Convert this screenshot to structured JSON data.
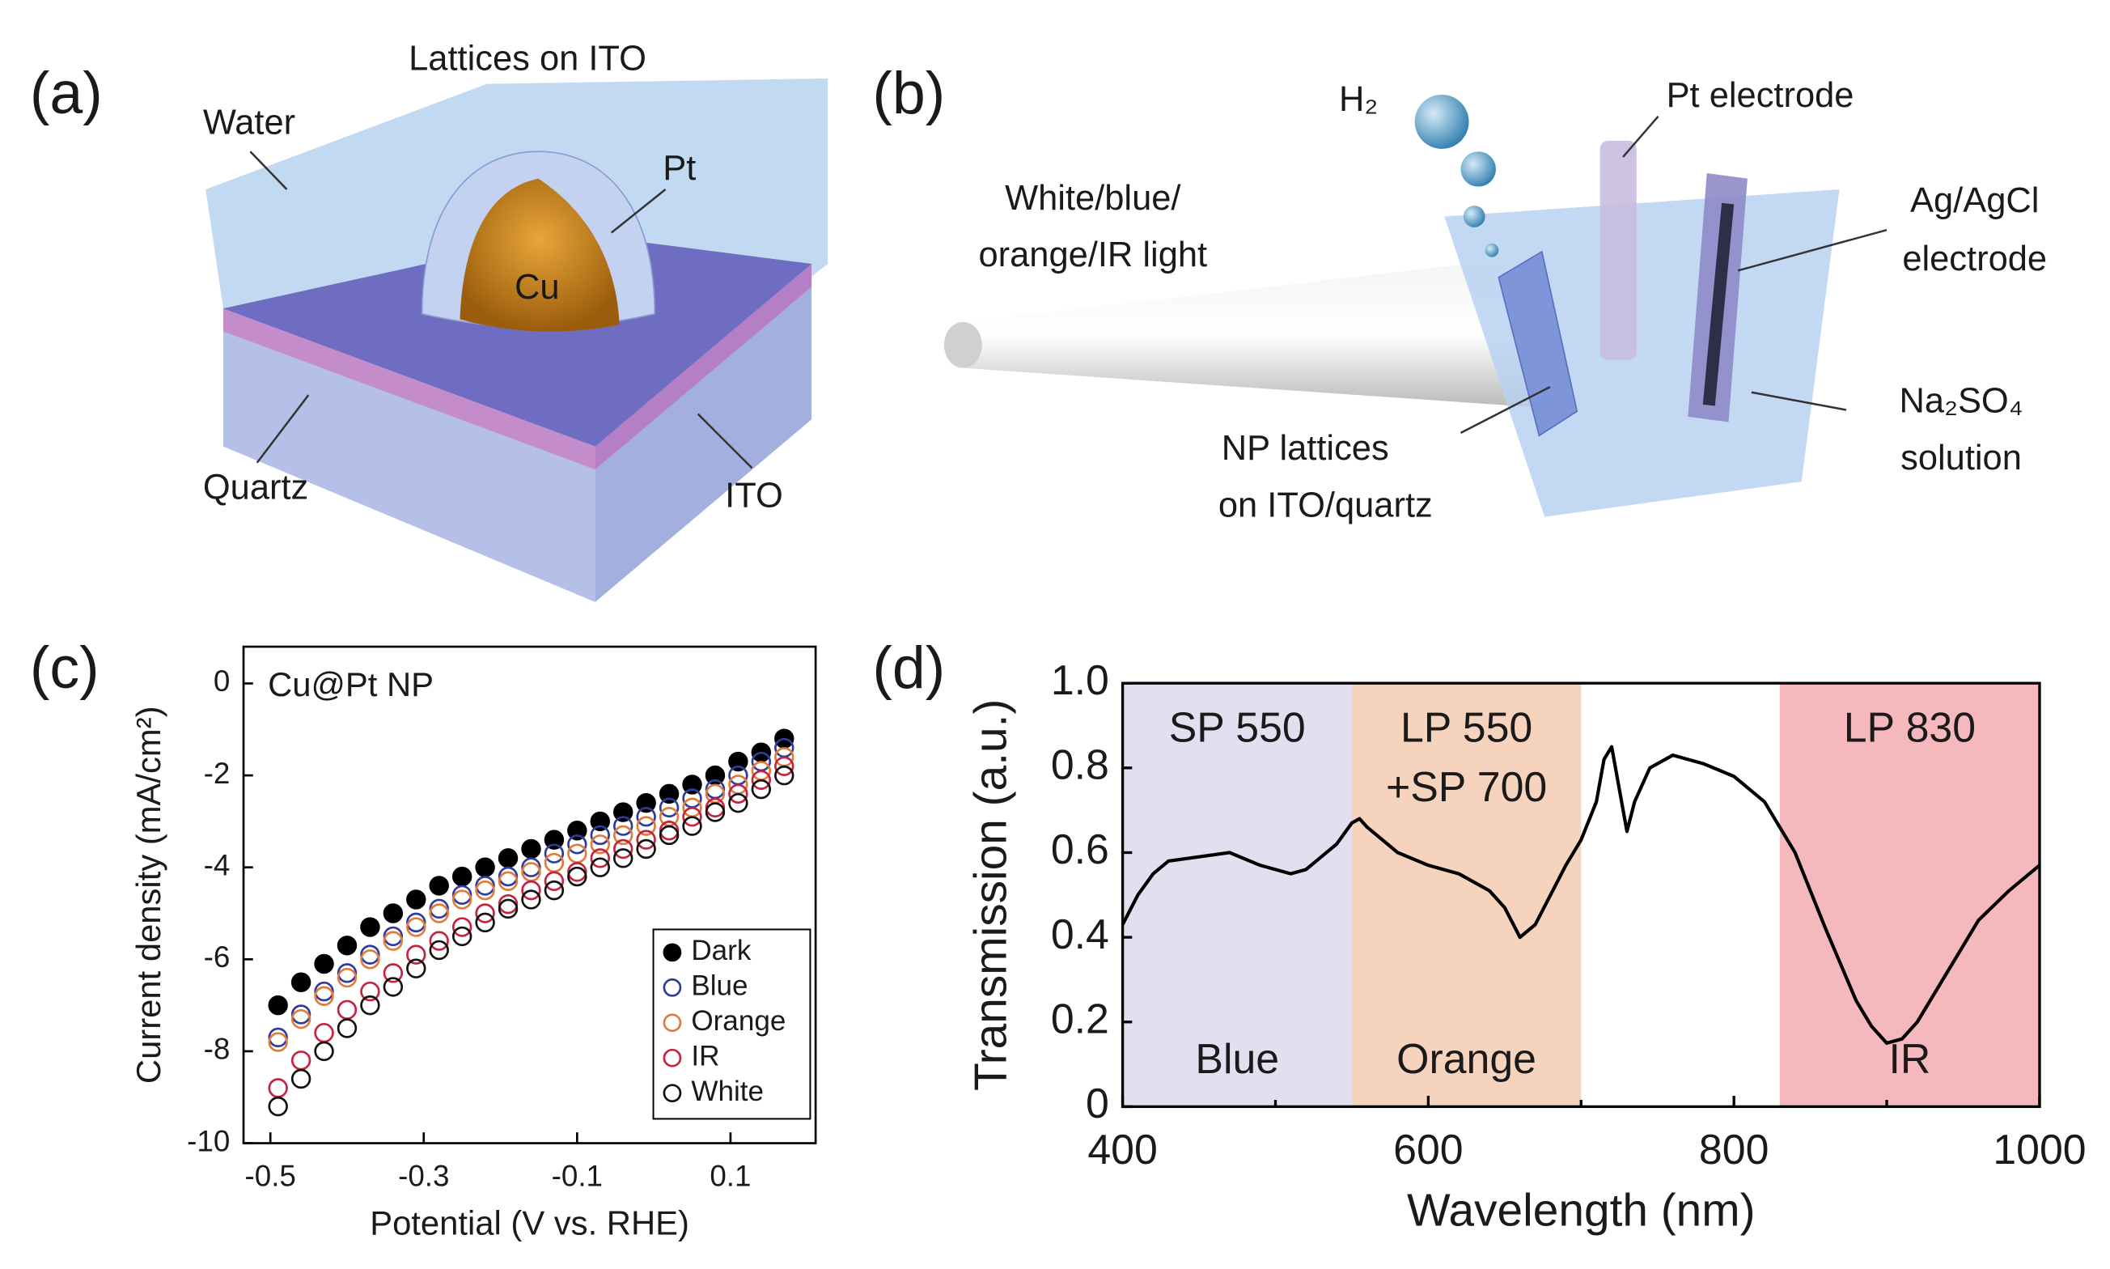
{
  "panels": [
    {
      "label": "(a)",
      "title": "Lattices on ITO",
      "labels": [
        "Water",
        "Pt",
        "Cu",
        "Quartz",
        "ITO"
      ]
    },
    {
      "label": "(b)",
      "labels": [
        "H₂",
        "Pt electrode",
        "White/blue/",
        "orange/IR light",
        "Ag/AgCl",
        "electrode",
        "NP lattices",
        "on ITO/quartz",
        "Na₂SO₄",
        "solution"
      ]
    }
  ],
  "chart_data": [
    {
      "type": "scatter",
      "panel": "(c)",
      "annotation": "Cu@Pt NP",
      "x_label": "Potential (V vs. RHE)",
      "y_label": "Current density (mA/cm²)",
      "x": [
        -0.49,
        -0.46,
        -0.43,
        -0.4,
        -0.37,
        -0.34,
        -0.31,
        -0.28,
        -0.25,
        -0.22,
        -0.19,
        -0.16,
        -0.13,
        -0.1,
        -0.07,
        -0.04,
        -0.01,
        0.02,
        0.05,
        0.08,
        0.11,
        0.14,
        0.17
      ],
      "series": [
        {
          "name": "Dark",
          "color": "#000000",
          "marker": "filled",
          "values": [
            -7.0,
            -6.5,
            -6.1,
            -5.7,
            -5.3,
            -5.0,
            -4.7,
            -4.4,
            -4.2,
            -4.0,
            -3.8,
            -3.6,
            -3.4,
            -3.2,
            -3.0,
            -2.8,
            -2.6,
            -2.4,
            -2.2,
            -2.0,
            -1.7,
            -1.5,
            -1.2
          ]
        },
        {
          "name": "Blue",
          "color": "#2e3d9c",
          "marker": "open",
          "values": [
            -7.7,
            -7.2,
            -6.7,
            -6.3,
            -5.9,
            -5.5,
            -5.2,
            -4.9,
            -4.6,
            -4.4,
            -4.2,
            -4.0,
            -3.7,
            -3.5,
            -3.3,
            -3.1,
            -2.9,
            -2.7,
            -2.5,
            -2.3,
            -2.0,
            -1.7,
            -1.4
          ]
        },
        {
          "name": "Orange",
          "color": "#e07b39",
          "marker": "open",
          "values": [
            -7.8,
            -7.3,
            -6.8,
            -6.4,
            -6.0,
            -5.6,
            -5.3,
            -5.0,
            -4.7,
            -4.5,
            -4.3,
            -4.1,
            -3.9,
            -3.7,
            -3.5,
            -3.3,
            -3.1,
            -2.9,
            -2.7,
            -2.4,
            -2.2,
            -1.9,
            -1.6
          ]
        },
        {
          "name": "IR",
          "color": "#c4243e",
          "marker": "open",
          "values": [
            -8.8,
            -8.2,
            -7.6,
            -7.1,
            -6.7,
            -6.3,
            -5.9,
            -5.6,
            -5.3,
            -5.0,
            -4.8,
            -4.5,
            -4.3,
            -4.1,
            -3.8,
            -3.6,
            -3.4,
            -3.2,
            -2.9,
            -2.7,
            -2.4,
            -2.1,
            -1.8
          ]
        },
        {
          "name": "White",
          "color": "#111111",
          "marker": "open",
          "values": [
            -9.2,
            -8.6,
            -8.0,
            -7.5,
            -7.0,
            -6.6,
            -6.2,
            -5.8,
            -5.5,
            -5.2,
            -4.9,
            -4.7,
            -4.5,
            -4.2,
            -4.0,
            -3.8,
            -3.6,
            -3.3,
            -3.1,
            -2.8,
            -2.6,
            -2.3,
            -2.0
          ]
        }
      ],
      "xlim": [
        -0.535,
        0.211
      ],
      "ylim": [
        -10,
        0.8
      ],
      "xticks": [
        -0.5,
        -0.3,
        -0.1,
        0.1
      ],
      "yticks": [
        0,
        -2,
        -4,
        -6,
        -8,
        -10
      ],
      "legend": "lower right"
    },
    {
      "type": "line",
      "panel": "(d)",
      "x_label": "Wavelength (nm)",
      "y_label": "Transmission (a.u.)",
      "color": "#000000",
      "bands": [
        {
          "from": 400,
          "to": 550,
          "color": "#e2e0f0",
          "filter": [
            "SP 550"
          ],
          "label": "Blue"
        },
        {
          "from": 550,
          "to": 700,
          "color": "#f6d3bd",
          "filter": [
            "LP 550",
            "+SP 700"
          ],
          "label": "Orange"
        },
        {
          "from": 830,
          "to": 1000,
          "color": "#f5b9bd",
          "filter": [
            "LP 830"
          ],
          "label": "IR"
        }
      ],
      "x": [
        400,
        410,
        420,
        430,
        450,
        470,
        490,
        500,
        510,
        520,
        530,
        540,
        550,
        555,
        560,
        570,
        580,
        600,
        620,
        640,
        650,
        660,
        670,
        680,
        690,
        700,
        710,
        715,
        720,
        725,
        730,
        735,
        745,
        760,
        780,
        800,
        820,
        840,
        860,
        880,
        890,
        900,
        910,
        920,
        940,
        960,
        980,
        1000
      ],
      "values": [
        0.43,
        0.5,
        0.55,
        0.58,
        0.59,
        0.6,
        0.57,
        0.56,
        0.55,
        0.56,
        0.59,
        0.62,
        0.67,
        0.68,
        0.66,
        0.63,
        0.6,
        0.57,
        0.55,
        0.51,
        0.47,
        0.4,
        0.43,
        0.5,
        0.57,
        0.63,
        0.72,
        0.82,
        0.85,
        0.75,
        0.65,
        0.72,
        0.8,
        0.83,
        0.81,
        0.78,
        0.72,
        0.6,
        0.42,
        0.25,
        0.19,
        0.15,
        0.16,
        0.2,
        0.32,
        0.44,
        0.51,
        0.57
      ],
      "xlim": [
        400,
        1000
      ],
      "ylim": [
        0,
        1
      ],
      "xticks": [
        400,
        600,
        800,
        1000
      ],
      "xminor": [
        500,
        700,
        900
      ],
      "yticks": [
        0,
        0.2,
        0.4,
        0.6,
        0.8,
        {
          "value": 1,
          "label": "1.0"
        }
      ]
    }
  ]
}
